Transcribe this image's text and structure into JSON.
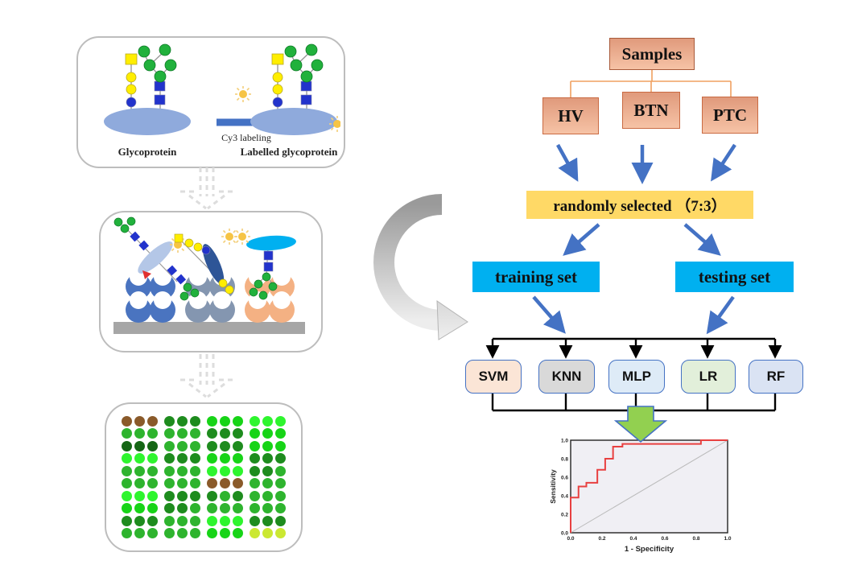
{
  "left_panel": {
    "labeling": {
      "label_left": "Glycoprotein",
      "arrow_label": "Cy3 labeling",
      "label_right": "Labelled glycoprotein"
    }
  },
  "flowchart": {
    "samples_label": "Samples",
    "groups": [
      {
        "label": "HV"
      },
      {
        "label": "BTN"
      },
      {
        "label": "PTC"
      }
    ],
    "random_label": "randomly selected （7:3）",
    "training_label": "training set",
    "testing_label": "testing set",
    "classifiers": [
      {
        "label": "SVM",
        "fill": "#FBE5D6"
      },
      {
        "label": "KNN",
        "fill": "#D9D9D9"
      },
      {
        "label": "MLP",
        "fill": "#DEEBF7"
      },
      {
        "label": "LR",
        "fill": "#E2EFDA"
      },
      {
        "label": "RF",
        "fill": "#DAE3F3"
      }
    ],
    "colors": {
      "arrow_blue": "#4472C4",
      "connector_orange": "#f0a060",
      "salmon_box": "#f2a583",
      "yellow_box": "#FFD966",
      "cyan_box": "#00B0F0",
      "green_arrow": "#92D050"
    }
  },
  "microarray": {
    "palette": {
      "br": "#8a5a2a",
      "vd": "#156615",
      "dk": "#1e8c1e",
      "md": "#2eb42e",
      "bt": "#17d417",
      "lm": "#2ef52e",
      "yg": "#cbe832"
    },
    "rows": [
      [
        "br",
        "br",
        "br",
        "dk",
        "dk",
        "dk",
        "bt",
        "bt",
        "bt",
        "lm",
        "lm",
        "lm"
      ],
      [
        "md",
        "md",
        "md",
        "md",
        "md",
        "md",
        "dk",
        "dk",
        "dk",
        "bt",
        "bt",
        "bt"
      ],
      [
        "vd",
        "vd",
        "vd",
        "md",
        "md",
        "md",
        "dk",
        "dk",
        "dk",
        "bt",
        "bt",
        "bt"
      ],
      [
        "lm",
        "lm",
        "lm",
        "dk",
        "dk",
        "dk",
        "bt",
        "bt",
        "bt",
        "dk",
        "dk",
        "dk"
      ],
      [
        "md",
        "md",
        "md",
        "md",
        "md",
        "md",
        "lm",
        "lm",
        "lm",
        "dk",
        "dk",
        "md"
      ],
      [
        "md",
        "md",
        "md",
        "md",
        "md",
        "md",
        "br",
        "br",
        "br",
        "md",
        "md",
        "md"
      ],
      [
        "lm",
        "lm",
        "lm",
        "dk",
        "dk",
        "dk",
        "dk",
        "md",
        "dk",
        "md",
        "md",
        "md"
      ],
      [
        "bt",
        "bt",
        "bt",
        "dk",
        "dk",
        "md",
        "md",
        "md",
        "md",
        "md",
        "md",
        "md"
      ],
      [
        "dk",
        "dk",
        "dk",
        "md",
        "md",
        "md",
        "lm",
        "lm",
        "lm",
        "dk",
        "dk",
        "dk"
      ],
      [
        "md",
        "md",
        "md",
        "md",
        "md",
        "md",
        "bt",
        "bt",
        "bt",
        "yg",
        "yg",
        "yg"
      ]
    ]
  },
  "chart_data": {
    "type": "line",
    "title": "",
    "xlabel": "1 - Specificity",
    "ylabel": "Sensitivity",
    "xlim": [
      0,
      1
    ],
    "ylim": [
      0,
      1
    ],
    "xticks": [
      0.0,
      0.2,
      0.4,
      0.6,
      0.8,
      1.0
    ],
    "yticks": [
      0.0,
      0.2,
      0.4,
      0.6,
      0.8,
      1.0
    ],
    "grid": false,
    "legend": false,
    "series": [
      {
        "name": "ROC curve",
        "color": "#e84040",
        "points": [
          [
            0,
            0
          ],
          [
            0,
            0.38
          ],
          [
            0.05,
            0.38
          ],
          [
            0.05,
            0.5
          ],
          [
            0.1,
            0.5
          ],
          [
            0.1,
            0.54
          ],
          [
            0.17,
            0.54
          ],
          [
            0.17,
            0.68
          ],
          [
            0.22,
            0.68
          ],
          [
            0.22,
            0.8
          ],
          [
            0.27,
            0.8
          ],
          [
            0.27,
            0.93
          ],
          [
            0.33,
            0.93
          ],
          [
            0.33,
            0.96
          ],
          [
            0.83,
            0.96
          ],
          [
            0.83,
            1.0
          ],
          [
            1.0,
            1.0
          ]
        ]
      },
      {
        "name": "reference diagonal",
        "color": "#bbbbbb",
        "points": [
          [
            0,
            0
          ],
          [
            1,
            1
          ]
        ]
      }
    ]
  }
}
